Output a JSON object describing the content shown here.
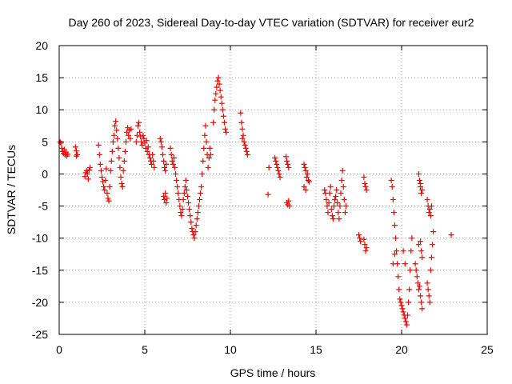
{
  "chart_data": {
    "type": "scatter",
    "title": "Day 260 of 2023, Sidereal Day-to-day VTEC variation (SDTVAR) for receiver eur2",
    "xlabel": "GPS time / hours",
    "ylabel": "SDTVAR / TECUs",
    "xlim": [
      0,
      25
    ],
    "ylim": [
      -25,
      20
    ],
    "xticks": [
      0,
      5,
      10,
      15,
      20,
      25
    ],
    "yticks": [
      -25,
      -20,
      -15,
      -10,
      -5,
      0,
      5,
      10,
      15,
      20
    ],
    "grid": true,
    "marker": "plus",
    "color": "#ff0000",
    "series": [
      {
        "name": "SDTVAR",
        "points": [
          [
            0.05,
            5.0
          ],
          [
            0.1,
            4.8
          ],
          [
            0.15,
            4.0
          ],
          [
            0.2,
            3.5
          ],
          [
            0.25,
            3.2
          ],
          [
            0.3,
            3.8
          ],
          [
            0.35,
            3.0
          ],
          [
            0.4,
            3.4
          ],
          [
            0.45,
            2.8
          ],
          [
            0.5,
            3.1
          ],
          [
            0.95,
            4.2
          ],
          [
            1.0,
            3.6
          ],
          [
            1.05,
            3.0
          ],
          [
            1.0,
            2.8
          ],
          [
            1.5,
            -0.4
          ],
          [
            1.55,
            0.2
          ],
          [
            1.6,
            0.5
          ],
          [
            1.65,
            0.0
          ],
          [
            1.7,
            -0.8
          ],
          [
            1.75,
            0.6
          ],
          [
            1.8,
            1.0
          ],
          [
            2.3,
            4.5
          ],
          [
            2.35,
            3.0
          ],
          [
            2.4,
            1.5
          ],
          [
            2.45,
            0.5
          ],
          [
            2.5,
            -0.5
          ],
          [
            2.55,
            -1.2
          ],
          [
            2.6,
            -2.0
          ],
          [
            2.65,
            -2.5
          ],
          [
            2.7,
            -1.0
          ],
          [
            2.75,
            0.8
          ],
          [
            2.8,
            -3.0
          ],
          [
            2.85,
            -3.8
          ],
          [
            2.9,
            -4.2
          ],
          [
            2.95,
            -2.0
          ],
          [
            3.0,
            0.5
          ],
          [
            3.05,
            2.0
          ],
          [
            3.1,
            3.5
          ],
          [
            3.15,
            5.0
          ],
          [
            3.2,
            6.0
          ],
          [
            3.25,
            7.5
          ],
          [
            3.3,
            8.2
          ],
          [
            3.35,
            6.8
          ],
          [
            3.4,
            5.5
          ],
          [
            3.45,
            4.0
          ],
          [
            3.5,
            2.5
          ],
          [
            3.55,
            1.0
          ],
          [
            3.6,
            -0.5
          ],
          [
            3.65,
            -1.5
          ],
          [
            3.7,
            -2.0
          ],
          [
            3.75,
            0.5
          ],
          [
            3.8,
            2.0
          ],
          [
            3.85,
            3.5
          ],
          [
            3.9,
            5.0
          ],
          [
            3.95,
            6.5
          ],
          [
            4.0,
            7.2
          ],
          [
            4.05,
            6.0
          ],
          [
            4.1,
            6.8
          ],
          [
            4.15,
            5.5
          ],
          [
            4.2,
            7.0
          ],
          [
            4.5,
            5.0
          ],
          [
            4.55,
            6.0
          ],
          [
            4.6,
            7.5
          ],
          [
            4.65,
            8.0
          ],
          [
            4.7,
            6.5
          ],
          [
            4.75,
            5.8
          ],
          [
            4.8,
            5.0
          ],
          [
            4.85,
            4.5
          ],
          [
            4.9,
            6.0
          ],
          [
            4.95,
            5.5
          ],
          [
            5.0,
            4.8
          ],
          [
            5.05,
            4.0
          ],
          [
            5.1,
            5.2
          ],
          [
            5.15,
            3.5
          ],
          [
            5.2,
            4.2
          ],
          [
            5.25,
            3.0
          ],
          [
            5.3,
            2.5
          ],
          [
            5.35,
            2.0
          ],
          [
            5.4,
            1.5
          ],
          [
            5.45,
            3.0
          ],
          [
            5.5,
            2.0
          ],
          [
            5.55,
            1.0
          ],
          [
            5.9,
            5.5
          ],
          [
            5.95,
            5.0
          ],
          [
            6.0,
            4.2
          ],
          [
            6.05,
            3.0
          ],
          [
            6.1,
            2.0
          ],
          [
            6.15,
            1.0
          ],
          [
            6.2,
            0.5
          ],
          [
            6.25,
            1.5
          ],
          [
            6.1,
            -3.5
          ],
          [
            6.15,
            -4.0
          ],
          [
            6.2,
            -3.0
          ],
          [
            6.25,
            -4.5
          ],
          [
            6.3,
            -3.8
          ],
          [
            6.5,
            4.0
          ],
          [
            6.55,
            3.0
          ],
          [
            6.6,
            2.0
          ],
          [
            6.65,
            1.5
          ],
          [
            6.7,
            2.5
          ],
          [
            6.75,
            1.0
          ],
          [
            6.8,
            0.0
          ],
          [
            6.85,
            -1.0
          ],
          [
            6.9,
            -2.0
          ],
          [
            6.95,
            -3.0
          ],
          [
            7.0,
            -4.0
          ],
          [
            7.05,
            -5.0
          ],
          [
            7.1,
            -6.0
          ],
          [
            7.15,
            -6.5
          ],
          [
            7.2,
            -5.5
          ],
          [
            7.25,
            -4.0
          ],
          [
            7.3,
            -3.0
          ],
          [
            7.35,
            -2.0
          ],
          [
            7.4,
            -1.0
          ],
          [
            7.45,
            -2.5
          ],
          [
            7.5,
            -3.5
          ],
          [
            7.55,
            -4.5
          ],
          [
            7.6,
            -5.5
          ],
          [
            7.65,
            -6.5
          ],
          [
            7.7,
            -7.5
          ],
          [
            7.75,
            -8.5
          ],
          [
            7.8,
            -9.0
          ],
          [
            7.85,
            -9.5
          ],
          [
            7.9,
            -10.0
          ],
          [
            7.95,
            -9.0
          ],
          [
            8.0,
            -8.0
          ],
          [
            8.05,
            -7.0
          ],
          [
            8.1,
            -6.0
          ],
          [
            8.15,
            -5.0
          ],
          [
            8.2,
            -4.0
          ],
          [
            8.25,
            -3.0
          ],
          [
            8.3,
            -2.0
          ],
          [
            8.35,
            0.0
          ],
          [
            8.4,
            2.0
          ],
          [
            8.45,
            4.0
          ],
          [
            8.5,
            6.0
          ],
          [
            8.55,
            7.5
          ],
          [
            8.6,
            5.0
          ],
          [
            8.65,
            3.0
          ],
          [
            8.7,
            1.0
          ],
          [
            8.75,
            2.5
          ],
          [
            8.8,
            4.0
          ],
          [
            8.85,
            3.0
          ],
          [
            9.0,
            8.0
          ],
          [
            9.05,
            10.0
          ],
          [
            9.1,
            11.5
          ],
          [
            9.15,
            12.5
          ],
          [
            9.2,
            13.5
          ],
          [
            9.25,
            14.5
          ],
          [
            9.3,
            15.0
          ],
          [
            9.35,
            14.0
          ],
          [
            9.4,
            13.0
          ],
          [
            9.45,
            12.0
          ],
          [
            9.5,
            11.0
          ],
          [
            9.55,
            10.0
          ],
          [
            9.6,
            9.0
          ],
          [
            9.65,
            8.0
          ],
          [
            9.7,
            7.0
          ],
          [
            9.75,
            6.5
          ],
          [
            10.6,
            9.5
          ],
          [
            10.65,
            8.0
          ],
          [
            10.7,
            7.0
          ],
          [
            10.75,
            6.0
          ],
          [
            10.8,
            5.0
          ],
          [
            10.85,
            4.5
          ],
          [
            10.9,
            4.0
          ],
          [
            10.95,
            3.5
          ],
          [
            11.0,
            3.0
          ],
          [
            10.7,
            5.5
          ],
          [
            12.2,
            -3.2
          ],
          [
            12.25,
            1.0
          ],
          [
            12.6,
            2.5
          ],
          [
            12.65,
            2.0
          ],
          [
            12.7,
            1.5
          ],
          [
            12.75,
            1.0
          ],
          [
            12.8,
            0.5
          ],
          [
            12.85,
            0.0
          ],
          [
            12.9,
            -0.5
          ],
          [
            13.25,
            2.7
          ],
          [
            13.3,
            2.0
          ],
          [
            13.35,
            1.5
          ],
          [
            13.4,
            1.0
          ],
          [
            13.3,
            -4.5
          ],
          [
            13.35,
            -4.8
          ],
          [
            13.4,
            -4.2
          ],
          [
            13.45,
            -5.0
          ],
          [
            14.3,
            1.5
          ],
          [
            14.35,
            1.0
          ],
          [
            14.4,
            0.5
          ],
          [
            14.45,
            -0.5
          ],
          [
            14.5,
            0.0
          ],
          [
            14.55,
            -1.0
          ],
          [
            14.6,
            -1.2
          ],
          [
            14.3,
            -2.0
          ],
          [
            14.4,
            -2.5
          ],
          [
            15.5,
            -2.5
          ],
          [
            15.55,
            -3.0
          ],
          [
            15.6,
            -4.0
          ],
          [
            15.65,
            -5.0
          ],
          [
            15.7,
            -6.0
          ],
          [
            15.75,
            -4.5
          ],
          [
            15.8,
            -3.0
          ],
          [
            15.85,
            -2.0
          ],
          [
            15.9,
            -5.5
          ],
          [
            15.95,
            -6.5
          ],
          [
            16.0,
            -7.0
          ],
          [
            16.05,
            -5.0
          ],
          [
            16.1,
            -4.0
          ],
          [
            16.15,
            -3.5
          ],
          [
            16.2,
            -2.5
          ],
          [
            16.25,
            -4.5
          ],
          [
            16.3,
            -6.0
          ],
          [
            16.35,
            -7.0
          ],
          [
            16.4,
            -5.0
          ],
          [
            16.45,
            -3.0
          ],
          [
            16.5,
            -1.0
          ],
          [
            16.55,
            0.5
          ],
          [
            16.6,
            -2.0
          ],
          [
            16.65,
            -4.0
          ],
          [
            16.7,
            -6.0
          ],
          [
            16.75,
            -5.0
          ],
          [
            17.5,
            -9.5
          ],
          [
            17.55,
            -10.0
          ],
          [
            17.6,
            -10.5
          ],
          [
            17.8,
            -10.2
          ],
          [
            17.85,
            -11.0
          ],
          [
            17.9,
            -12.0
          ],
          [
            17.95,
            -11.5
          ],
          [
            17.8,
            -0.5
          ],
          [
            17.85,
            -1.5
          ],
          [
            17.9,
            -2.0
          ],
          [
            17.95,
            -2.5
          ],
          [
            19.4,
            -1.0
          ],
          [
            19.45,
            -2.0
          ],
          [
            19.5,
            -4.0
          ],
          [
            19.55,
            -6.0
          ],
          [
            19.6,
            -8.0
          ],
          [
            19.65,
            -10.0
          ],
          [
            19.7,
            -12.0
          ],
          [
            19.75,
            -14.0
          ],
          [
            19.8,
            -16.0
          ],
          [
            19.85,
            -18.0
          ],
          [
            19.9,
            -19.5
          ],
          [
            19.95,
            -20.0
          ],
          [
            20.0,
            -20.5
          ],
          [
            20.05,
            -21.0
          ],
          [
            20.1,
            -21.5
          ],
          [
            20.15,
            -22.0
          ],
          [
            20.2,
            -22.5
          ],
          [
            20.25,
            -23.0
          ],
          [
            20.3,
            -23.5
          ],
          [
            20.35,
            -22.0
          ],
          [
            20.4,
            -20.0
          ],
          [
            20.45,
            -18.0
          ],
          [
            20.5,
            -15.0
          ],
          [
            20.55,
            -12.0
          ],
          [
            20.6,
            -10.0
          ],
          [
            20.1,
            -12.0
          ],
          [
            20.2,
            -14.0
          ],
          [
            19.6,
            -12.5
          ],
          [
            19.5,
            -14.0
          ],
          [
            20.8,
            -14.0
          ],
          [
            20.85,
            -15.0
          ],
          [
            20.9,
            -16.0
          ],
          [
            20.95,
            -17.0
          ],
          [
            21.0,
            -18.0
          ],
          [
            21.05,
            -17.5
          ],
          [
            21.1,
            -19.0
          ],
          [
            21.15,
            -20.0
          ],
          [
            21.2,
            -21.0
          ],
          [
            21.1,
            -10.5
          ],
          [
            21.15,
            -12.0
          ],
          [
            21.2,
            -13.0
          ],
          [
            21.0,
            -11.0
          ],
          [
            21.0,
            0.0
          ],
          [
            21.05,
            -1.0
          ],
          [
            21.1,
            -2.0
          ],
          [
            21.15,
            -3.0
          ],
          [
            21.2,
            -2.5
          ],
          [
            21.1,
            -1.5
          ],
          [
            21.5,
            -4.0
          ],
          [
            21.55,
            -5.0
          ],
          [
            21.6,
            -6.0
          ],
          [
            21.65,
            -5.5
          ],
          [
            21.7,
            -6.5
          ],
          [
            21.75,
            -5.0
          ],
          [
            21.5,
            -17.0
          ],
          [
            21.55,
            -18.0
          ],
          [
            21.6,
            -19.0
          ],
          [
            21.65,
            -20.0
          ],
          [
            21.7,
            -15.0
          ],
          [
            21.75,
            -13.0
          ],
          [
            21.8,
            -11.0
          ],
          [
            21.85,
            -9.0
          ],
          [
            22.9,
            -9.5
          ]
        ]
      }
    ]
  }
}
